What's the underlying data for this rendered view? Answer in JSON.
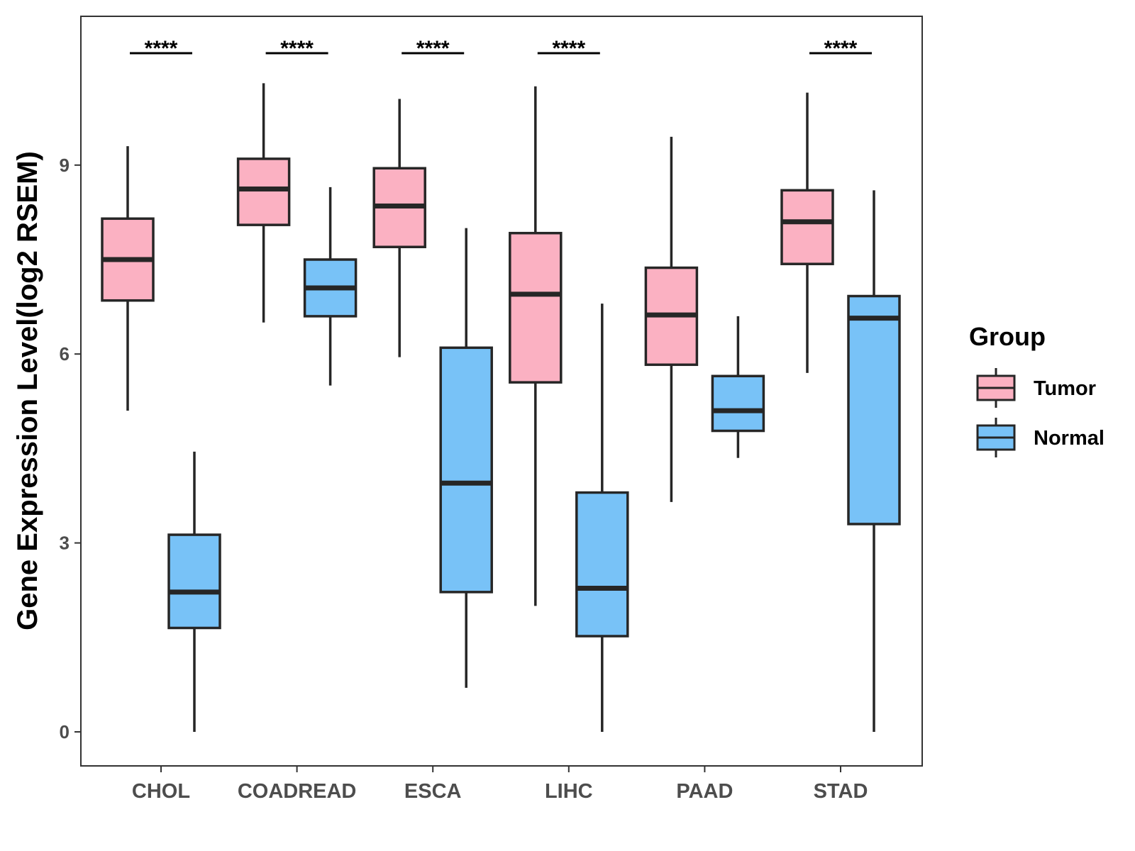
{
  "chart_data": {
    "type": "boxplot",
    "title": "",
    "xlabel": "",
    "ylabel": "Gene Expression Level(log2 RSEM)",
    "ylim": [
      -0.5,
      11.4
    ],
    "yticks": [
      0,
      3,
      6,
      9
    ],
    "grid": false,
    "legend": {
      "title": "Group",
      "position": "right"
    },
    "categories": [
      "CHOL",
      "COADREAD",
      "ESCA",
      "LIHC",
      "PAAD",
      "STAD"
    ],
    "series": [
      {
        "name": "Tumor",
        "color": "#fbb1c2",
        "boxes": [
          {
            "category": "CHOL",
            "min": 5.1,
            "q1": 6.85,
            "median": 7.5,
            "q3": 8.15,
            "max": 9.3
          },
          {
            "category": "COADREAD",
            "min": 6.5,
            "q1": 8.05,
            "median": 8.62,
            "q3": 9.1,
            "max": 10.3
          },
          {
            "category": "ESCA",
            "min": 5.95,
            "q1": 7.7,
            "median": 8.35,
            "q3": 8.95,
            "max": 10.05
          },
          {
            "category": "LIHC",
            "min": 2.0,
            "q1": 5.55,
            "median": 6.95,
            "q3": 7.92,
            "max": 10.25
          },
          {
            "category": "PAAD",
            "min": 3.65,
            "q1": 5.83,
            "median": 6.62,
            "q3": 7.37,
            "max": 9.45
          },
          {
            "category": "STAD",
            "min": 5.7,
            "q1": 7.43,
            "median": 8.1,
            "q3": 8.6,
            "max": 10.15
          }
        ]
      },
      {
        "name": "Normal",
        "color": "#78c2f7",
        "boxes": [
          {
            "category": "CHOL",
            "min": 0.0,
            "q1": 1.65,
            "median": 2.22,
            "q3": 3.13,
            "max": 4.45
          },
          {
            "category": "COADREAD",
            "min": 5.5,
            "q1": 6.6,
            "median": 7.05,
            "q3": 7.5,
            "max": 8.65
          },
          {
            "category": "ESCA",
            "min": 0.7,
            "q1": 2.22,
            "median": 3.95,
            "q3": 6.1,
            "max": 8.0
          },
          {
            "category": "LIHC",
            "min": 0.0,
            "q1": 1.52,
            "median": 2.28,
            "q3": 3.8,
            "max": 6.8
          },
          {
            "category": "PAAD",
            "min": 4.35,
            "q1": 4.78,
            "median": 5.1,
            "q3": 5.65,
            "max": 6.6
          },
          {
            "category": "STAD",
            "min": 0.0,
            "q1": 3.3,
            "median": 6.57,
            "q3": 6.92,
            "max": 8.6
          }
        ]
      }
    ],
    "significance": [
      {
        "category": "CHOL",
        "label": "****"
      },
      {
        "category": "COADREAD",
        "label": "****"
      },
      {
        "category": "ESCA",
        "label": "****"
      },
      {
        "category": "LIHC",
        "label": "****"
      },
      {
        "category": "STAD",
        "label": "****"
      }
    ]
  }
}
